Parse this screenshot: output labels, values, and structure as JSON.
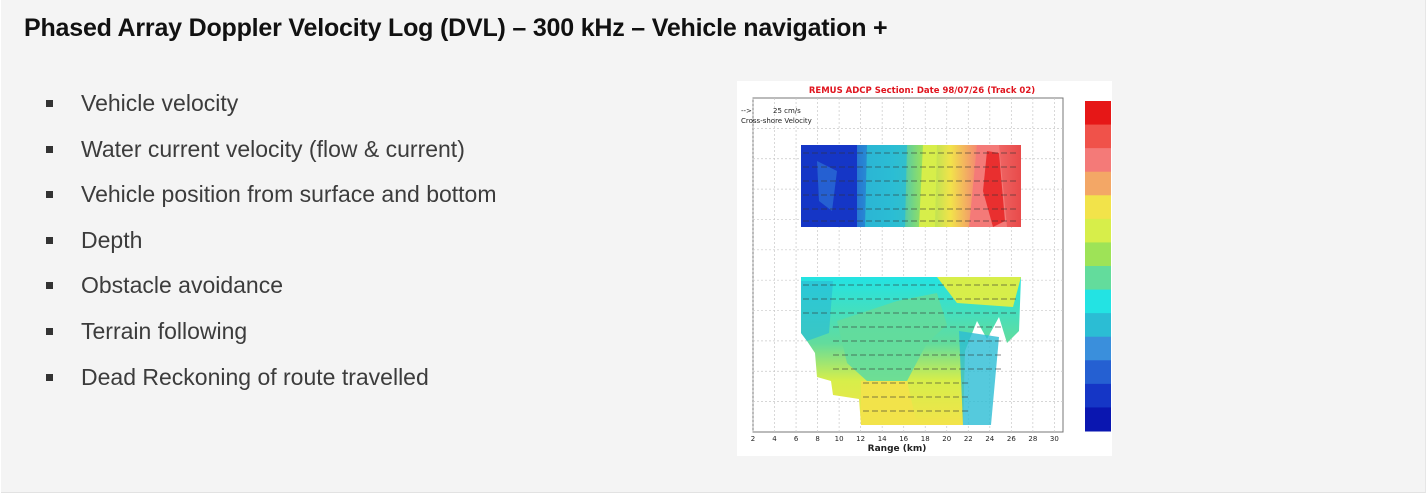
{
  "title": "Phased Array Doppler Velocity Log (DVL) – 300 kHz – Vehicle navigation +",
  "bullets": [
    "Vehicle velocity",
    "Water current velocity (flow & current)",
    "Vehicle position from surface and bottom",
    "Depth",
    "Obstacle avoidance",
    "Terrain following",
    "Dead Reckoning of route travelled"
  ],
  "figure": {
    "title": "REMUS ADCP Section: Date 98/07/26 (Track 02)",
    "legend_scale": "25 cm/s",
    "legend_label": "Cross-shore Velocity",
    "xlabel": "Range (km)",
    "x_ticks": [
      "2",
      "4",
      "6",
      "8",
      "10",
      "12",
      "14",
      "16",
      "18",
      "20",
      "22",
      "24",
      "26",
      "28",
      "30"
    ],
    "colors": {
      "title": "#e0141e",
      "colorbar": [
        "#e61717",
        "#f0524a",
        "#f47a78",
        "#f3a766",
        "#f2e34a",
        "#d7ee4a",
        "#9ee357",
        "#63dc9c",
        "#23e3e3",
        "#2bbdd4",
        "#3a8fdc",
        "#2560d2",
        "#1536c6",
        "#0a16b0"
      ]
    }
  }
}
